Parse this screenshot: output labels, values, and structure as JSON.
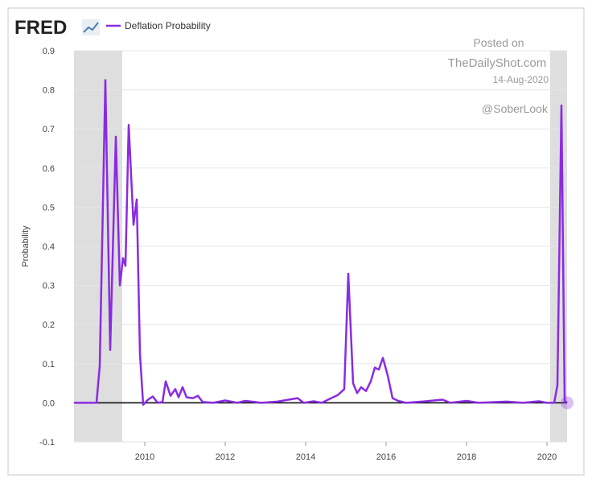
{
  "chart_data": {
    "type": "line",
    "brand": "FRED",
    "y_label": "Probability",
    "watermark": [
      "Posted on",
      "TheDailyShot.com",
      "14-Aug-2020",
      "@SoberLook"
    ],
    "xlim": [
      2008.24,
      2020.5
    ],
    "ylim": [
      -0.1,
      0.9
    ],
    "xticks": [
      2010,
      2012,
      2014,
      2016,
      2018,
      2020
    ],
    "yticks": [
      -0.1,
      {
        "value": 0,
        "label": "0.0"
      },
      0.1,
      0.2,
      0.3,
      0.4,
      0.5,
      0.6,
      0.7,
      0.8,
      0.9
    ],
    "grid": true,
    "recessions": [
      [
        2007.92,
        2009.44
      ],
      [
        2020.08,
        2020.5
      ]
    ],
    "legend": "top-left",
    "x": [
      2008.24,
      2008.5,
      2008.8,
      2008.88,
      2009.02,
      2009.14,
      2009.28,
      2009.38,
      2009.46,
      2009.52,
      2009.6,
      2009.72,
      2009.8,
      2009.88,
      2009.96,
      2010.08,
      2010.2,
      2010.32,
      2010.44,
      2010.52,
      2010.64,
      2010.76,
      2010.84,
      2010.94,
      2011.04,
      2011.2,
      2011.32,
      2011.44,
      2011.7,
      2012.0,
      2012.3,
      2012.5,
      2012.9,
      2013.3,
      2013.8,
      2013.95,
      2014.2,
      2014.4,
      2014.6,
      2014.8,
      2014.96,
      2015.06,
      2015.18,
      2015.28,
      2015.38,
      2015.5,
      2015.62,
      2015.72,
      2015.82,
      2015.92,
      2016.04,
      2016.16,
      2016.3,
      2016.5,
      2016.9,
      2017.4,
      2017.6,
      2018.0,
      2018.3,
      2019.0,
      2019.4,
      2019.8,
      2020.0,
      2020.18,
      2020.26,
      2020.36,
      2020.44,
      2020.5
    ],
    "series": [
      {
        "name": "Deflation Probability",
        "color": "#8a2be2",
        "values": [
          0,
          0,
          0,
          0.095,
          0.825,
          0.135,
          0.68,
          0.3,
          0.37,
          0.35,
          0.71,
          0.455,
          0.52,
          0.125,
          -0.005,
          0.008,
          0.016,
          0,
          0.002,
          0.055,
          0.018,
          0.035,
          0.014,
          0.04,
          0.014,
          0.012,
          0.018,
          0.002,
          0,
          0.006,
          0,
          0.005,
          0,
          0.003,
          0.012,
          0,
          0.004,
          0,
          0.01,
          0.02,
          0.035,
          0.33,
          0.05,
          0.025,
          0.04,
          0.03,
          0.055,
          0.09,
          0.085,
          0.115,
          0.07,
          0.012,
          0.005,
          0,
          0.003,
          0.008,
          0,
          0.005,
          0,
          0.003,
          0,
          0.004,
          0,
          0,
          0.045,
          0.76,
          0.005,
          0
        ]
      }
    ]
  }
}
